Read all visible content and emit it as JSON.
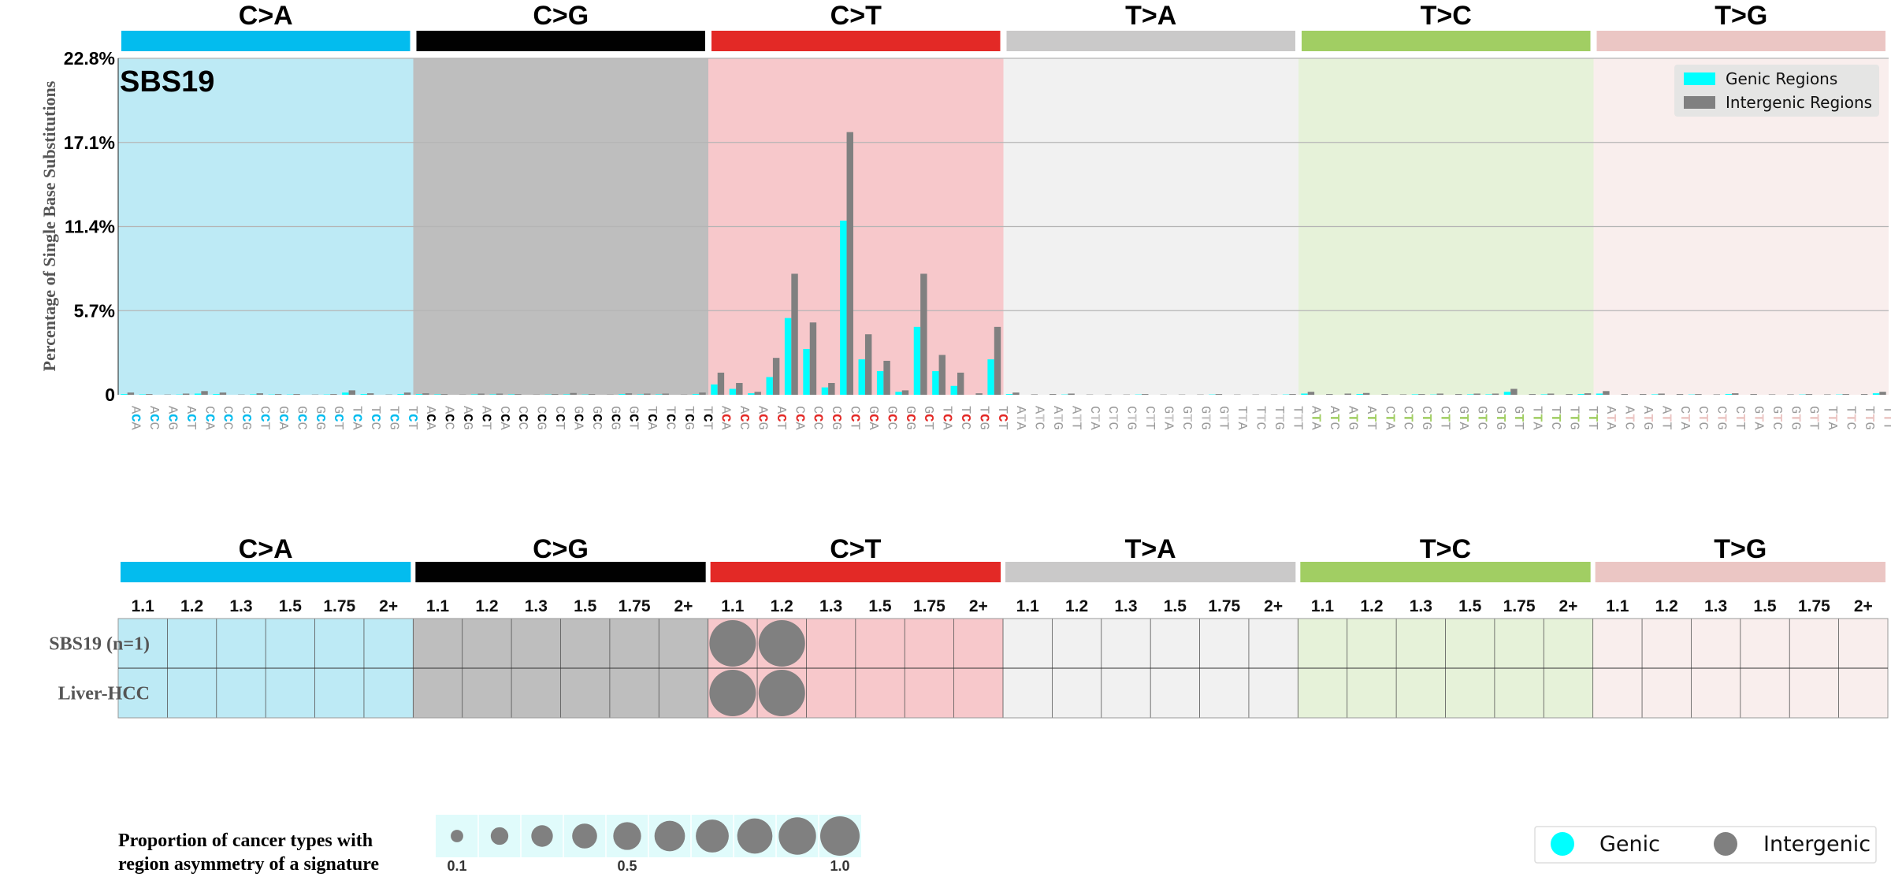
{
  "chart_data": {
    "type": "bar",
    "signature": "SBS19",
    "ylabel": "Percentage of Single Base Substitutions",
    "yticks": [
      "0",
      "5.7%",
      "11.4%",
      "17.1%",
      "22.8%"
    ],
    "ylim": [
      0,
      22.8
    ],
    "grid": true,
    "legend_placement": "top-right",
    "mutation_types": [
      "C>A",
      "C>G",
      "C>T",
      "T>A",
      "T>C",
      "T>G"
    ],
    "type_colors": [
      "#03BCEE",
      "#010101",
      "#E32926",
      "#CAC9C9",
      "#A1CE63",
      "#EBC6C4"
    ],
    "background_colors": [
      "#BDEAF5",
      "#BEBEBE",
      "#F7C8CB",
      "#F1F1F1",
      "#E6F2D9",
      "#F9EEED"
    ],
    "categories": [
      "ACA",
      "ACC",
      "ACG",
      "ACT",
      "CCA",
      "CCC",
      "CCG",
      "CCT",
      "GCA",
      "GCC",
      "GCG",
      "GCT",
      "TCA",
      "TCC",
      "TCG",
      "TCT",
      "ACA",
      "ACC",
      "ACG",
      "ACT",
      "CCA",
      "CCC",
      "CCG",
      "CCT",
      "GCA",
      "GCC",
      "GCG",
      "GCT",
      "TCA",
      "TCC",
      "TCG",
      "TCT",
      "ACA",
      "ACC",
      "ACG",
      "ACT",
      "CCA",
      "CCC",
      "CCG",
      "CCT",
      "GCA",
      "GCC",
      "GCG",
      "GCT",
      "TCA",
      "TCC",
      "TCG",
      "TCT",
      "ATA",
      "ATC",
      "ATG",
      "ATT",
      "CTA",
      "CTC",
      "CTG",
      "CTT",
      "GTA",
      "GTC",
      "GTG",
      "GTT",
      "TTA",
      "TTC",
      "TTG",
      "TTT",
      "ATA",
      "ATC",
      "ATG",
      "ATT",
      "CTA",
      "CTC",
      "CTG",
      "CTT",
      "GTA",
      "GTC",
      "GTG",
      "GTT",
      "TTA",
      "TTC",
      "TTG",
      "TTT",
      "ATA",
      "ATC",
      "ATG",
      "ATT",
      "CTA",
      "CTC",
      "CTG",
      "CTT",
      "GTA",
      "GTC",
      "GTG",
      "GTT",
      "TTA",
      "TTC",
      "TTG",
      "TTT"
    ],
    "series": [
      {
        "name": "Genic Regions",
        "color": "#00FFFF",
        "values": [
          0.05,
          0.03,
          0,
          0.02,
          0.08,
          0.05,
          0,
          0.03,
          0.02,
          0.02,
          0,
          0.02,
          0.15,
          0.05,
          0,
          0.05,
          0.05,
          0.03,
          0,
          0.03,
          0.03,
          0.03,
          0,
          0.02,
          0.03,
          0.02,
          0,
          0.05,
          0.03,
          0.03,
          0,
          0.05,
          0.7,
          0.4,
          0.1,
          1.2,
          5.2,
          3.1,
          0.5,
          11.8,
          2.4,
          1.6,
          0.2,
          4.6,
          1.6,
          0.6,
          0,
          2.4,
          0.05,
          0,
          0,
          0.02,
          0,
          0,
          0,
          0.02,
          0,
          0,
          0,
          0.02,
          0,
          0,
          0,
          0.02,
          0.08,
          0,
          0,
          0.05,
          0,
          0,
          0.03,
          0.02,
          0,
          0.03,
          0.03,
          0.2,
          0,
          0.03,
          0,
          0.05,
          0.08,
          0,
          0,
          0.03,
          0,
          0.02,
          0,
          0.05,
          0,
          0,
          0,
          0.02,
          0,
          0.02,
          0,
          0.1
        ]
      },
      {
        "name": "Intergenic Regions",
        "color": "#808080",
        "values": [
          0.15,
          0.05,
          0.02,
          0.08,
          0.25,
          0.15,
          0.02,
          0.1,
          0.05,
          0.05,
          0.02,
          0.05,
          0.3,
          0.1,
          0.02,
          0.15,
          0.1,
          0.05,
          0.02,
          0.08,
          0.08,
          0.05,
          0.02,
          0.05,
          0.12,
          0.05,
          0.02,
          0.1,
          0.08,
          0.08,
          0.02,
          0.15,
          1.5,
          0.8,
          0.2,
          2.5,
          8.2,
          4.9,
          0.8,
          17.8,
          4.1,
          2.3,
          0.3,
          8.2,
          2.7,
          1.5,
          0.1,
          4.6,
          0.15,
          0.03,
          0.05,
          0.08,
          0.02,
          0.02,
          0.02,
          0.05,
          0.02,
          0.02,
          0.02,
          0.05,
          0.02,
          0.02,
          0.02,
          0.05,
          0.2,
          0.05,
          0.08,
          0.12,
          0.05,
          0.03,
          0.05,
          0.08,
          0.05,
          0.08,
          0.08,
          0.4,
          0.05,
          0.08,
          0.05,
          0.1,
          0.25,
          0.05,
          0.05,
          0.08,
          0.05,
          0.05,
          0.03,
          0.1,
          0.05,
          0.03,
          0.03,
          0.05,
          0.03,
          0.05,
          0.05,
          0.2
        ]
      }
    ],
    "asymmetry_grid": {
      "odds_ratio_bins": [
        "1.1",
        "1.2",
        "1.3",
        "1.5",
        "1.75",
        "2+"
      ],
      "rows": [
        "SBS19 (n=1)",
        "Liver-HCC"
      ],
      "circles": [
        {
          "row": 0,
          "type": 2,
          "bin": 0,
          "proportion": 1.0,
          "strand": "Intergenic"
        },
        {
          "row": 0,
          "type": 2,
          "bin": 1,
          "proportion": 1.0,
          "strand": "Intergenic"
        },
        {
          "row": 1,
          "type": 2,
          "bin": 0,
          "proportion": 1.0,
          "strand": "Intergenic"
        },
        {
          "row": 1,
          "type": 2,
          "bin": 1,
          "proportion": 1.0,
          "strand": "Intergenic"
        }
      ]
    },
    "proportion_legend": {
      "title_line1": "Proportion of cancer types with",
      "title_line2": "region asymmetry of a signature",
      "values": [
        0.1,
        0.2,
        0.3,
        0.4,
        0.5,
        0.6,
        0.7,
        0.8,
        0.9,
        1.0
      ],
      "labels": [
        "0.1",
        "0.5",
        "1.0"
      ]
    },
    "strand_legend": [
      {
        "label": "Genic",
        "color": "#00FFFF"
      },
      {
        "label": "Intergenic",
        "color": "#808080"
      }
    ]
  }
}
